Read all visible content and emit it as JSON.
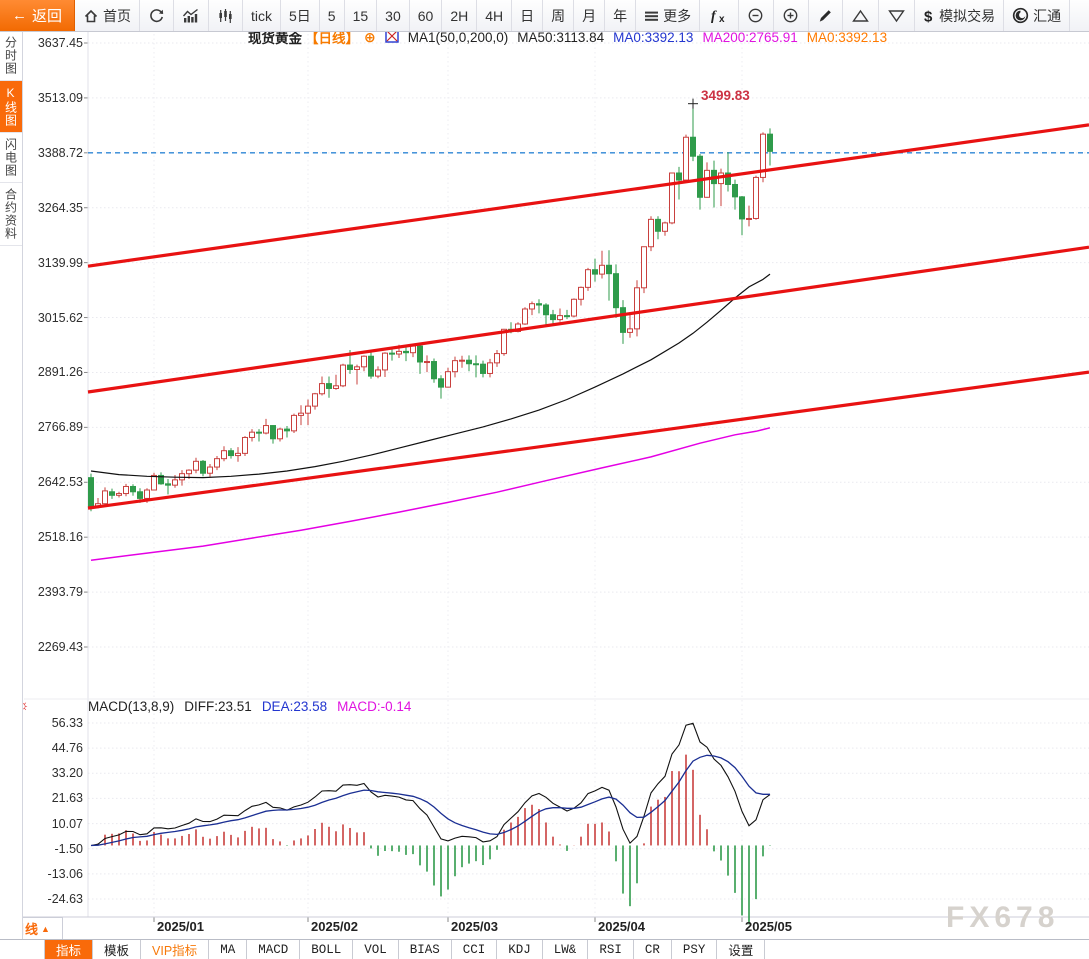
{
  "toolbar": {
    "back": {
      "label": "返回"
    },
    "buttons": [
      {
        "name": "home-button",
        "label": "首页",
        "icon": "home"
      },
      {
        "name": "refresh-button",
        "label": "",
        "icon": "refresh"
      },
      {
        "name": "line-chart-button",
        "label": "",
        "icon": "line-chart"
      },
      {
        "name": "candle-chart-button",
        "label": "",
        "icon": "candle-chart"
      },
      {
        "name": "tf-tick-button",
        "label": "tick",
        "icon": ""
      },
      {
        "name": "tf-5day-button",
        "label": "5日",
        "icon": ""
      },
      {
        "name": "tf-5min-button",
        "label": "5",
        "icon": ""
      },
      {
        "name": "tf-15min-button",
        "label": "15",
        "icon": ""
      },
      {
        "name": "tf-30min-button",
        "label": "30",
        "icon": ""
      },
      {
        "name": "tf-60min-button",
        "label": "60",
        "icon": ""
      },
      {
        "name": "tf-2h-button",
        "label": "2H",
        "icon": ""
      },
      {
        "name": "tf-4h-button",
        "label": "4H",
        "icon": ""
      },
      {
        "name": "tf-day-button",
        "label": "日",
        "icon": ""
      },
      {
        "name": "tf-week-button",
        "label": "周",
        "icon": ""
      },
      {
        "name": "tf-month-button",
        "label": "月",
        "icon": ""
      },
      {
        "name": "tf-year-button",
        "label": "年",
        "icon": ""
      },
      {
        "name": "more-button",
        "label": "更多",
        "icon": "menu"
      },
      {
        "name": "indicator-formula-button",
        "label": "",
        "icon": "fx"
      },
      {
        "name": "zoom-out-button",
        "label": "",
        "icon": "zoom-out"
      },
      {
        "name": "zoom-in-button",
        "label": "",
        "icon": "zoom-in"
      },
      {
        "name": "draw-button",
        "label": "",
        "icon": "pencil"
      },
      {
        "name": "triangle-up-button",
        "label": "",
        "icon": "triangle-up"
      },
      {
        "name": "triangle-down-button",
        "label": "",
        "icon": "triangle-down"
      },
      {
        "name": "sim-trade-button",
        "label": "模拟交易",
        "icon": "dollar"
      },
      {
        "name": "huitong-button",
        "label": "汇通",
        "icon": "spiral"
      }
    ]
  },
  "sidebar": {
    "items": [
      {
        "name": "sidebar-item-time-chart",
        "label": "分时图",
        "active": false
      },
      {
        "name": "sidebar-item-kline-chart",
        "label": "K线图",
        "active": true
      },
      {
        "name": "sidebar-item-lightning-chart",
        "label": "闪电图",
        "active": false
      },
      {
        "name": "sidebar-item-contract-info",
        "label": "合约资料",
        "active": false
      }
    ]
  },
  "chart_header": {
    "symbol": "现货黄金",
    "period_tag": "【日线】",
    "plus_icon": "⊕",
    "ma_settings": "MA1(50,0,200,0)",
    "ma50": "MA50:3113.84",
    "ma0_blue": "MA0:3392.13",
    "ma200": "MA200:2765.91",
    "ma0_orange": "MA0:3392.13"
  },
  "macd_header": {
    "formula": "MACD(13,8,9)",
    "diff": "DIFF:23.51",
    "dea": "DEA:23.58",
    "macd": "MACD:-0.14"
  },
  "peak_annotation": "3499.83",
  "bottom": {
    "period_label": "日线",
    "period_arrow": "▲",
    "tabs": [
      {
        "name": "tab-indicators",
        "label": "指标",
        "active": true,
        "latin": false,
        "vip": false
      },
      {
        "name": "tab-templates",
        "label": "模板",
        "active": false,
        "latin": false,
        "vip": false
      },
      {
        "name": "tab-vip-indicators",
        "label": "VIP指标",
        "active": false,
        "latin": false,
        "vip": true
      },
      {
        "name": "tab-ma",
        "label": "MA",
        "active": false,
        "latin": true,
        "vip": false
      },
      {
        "name": "tab-macd",
        "label": "MACD",
        "active": false,
        "latin": true,
        "vip": false
      },
      {
        "name": "tab-boll",
        "label": "BOLL",
        "active": false,
        "latin": true,
        "vip": false
      },
      {
        "name": "tab-vol",
        "label": "VOL",
        "active": false,
        "latin": true,
        "vip": false
      },
      {
        "name": "tab-bias",
        "label": "BIAS",
        "active": false,
        "latin": true,
        "vip": false
      },
      {
        "name": "tab-cci",
        "label": "CCI",
        "active": false,
        "latin": true,
        "vip": false
      },
      {
        "name": "tab-kdj",
        "label": "KDJ",
        "active": false,
        "latin": true,
        "vip": false
      },
      {
        "name": "tab-lw",
        "label": "LW&",
        "active": false,
        "latin": true,
        "vip": false
      },
      {
        "name": "tab-rsi",
        "label": "RSI",
        "active": false,
        "latin": true,
        "vip": false
      },
      {
        "name": "tab-cr",
        "label": "CR",
        "active": false,
        "latin": true,
        "vip": false
      },
      {
        "name": "tab-psy",
        "label": "PSY",
        "active": false,
        "latin": true,
        "vip": false
      },
      {
        "name": "tab-settings",
        "label": "设置",
        "active": false,
        "latin": false,
        "vip": false
      }
    ]
  },
  "watermark": "FX678",
  "chart_data": {
    "type": "candlestick",
    "symbol": "现货黄金",
    "period": "日线",
    "y_axis": [
      "3637.45",
      "3513.09",
      "3388.72",
      "3264.35",
      "3139.99",
      "3015.62",
      "2891.26",
      "2766.89",
      "2642.53",
      "2518.16",
      "2393.79",
      "2269.43"
    ],
    "macd_y_axis": [
      "56.33",
      "44.76",
      "33.20",
      "21.63",
      "10.07",
      "-1.50",
      "-13.06",
      "-24.63"
    ],
    "x_axis": [
      {
        "label": "2025/01",
        "candle_index": 9
      },
      {
        "label": "2025/02",
        "candle_index": 31
      },
      {
        "label": "2025/03",
        "candle_index": 51
      },
      {
        "label": "2025/04",
        "candle_index": 72
      },
      {
        "label": "2025/05",
        "candle_index": 93
      }
    ],
    "current_price_line": 3388.72,
    "peak_high": 3499.83,
    "candles_ohlc": [
      [
        2653,
        2662,
        2577,
        2587
      ],
      [
        2587,
        2607,
        2583,
        2594
      ],
      [
        2594,
        2631,
        2588,
        2623
      ],
      [
        2621,
        2628,
        2605,
        2613
      ],
      [
        2613,
        2621,
        2608,
        2617
      ],
      [
        2617,
        2639,
        2611,
        2633
      ],
      [
        2633,
        2638,
        2612,
        2621
      ],
      [
        2621,
        2629,
        2596,
        2606
      ],
      [
        2606,
        2629,
        2596,
        2625
      ],
      [
        2625,
        2664,
        2624,
        2658
      ],
      [
        2658,
        2665,
        2637,
        2639
      ],
      [
        2639,
        2650,
        2615,
        2636
      ],
      [
        2636,
        2659,
        2630,
        2648
      ],
      [
        2648,
        2670,
        2635,
        2662
      ],
      [
        2662,
        2672,
        2650,
        2670
      ],
      [
        2670,
        2698,
        2663,
        2690
      ],
      [
        2690,
        2693,
        2656,
        2663
      ],
      [
        2663,
        2684,
        2655,
        2677
      ],
      [
        2677,
        2702,
        2670,
        2696
      ],
      [
        2696,
        2724,
        2690,
        2714
      ],
      [
        2714,
        2720,
        2696,
        2703
      ],
      [
        2703,
        2722,
        2689,
        2708
      ],
      [
        2708,
        2747,
        2702,
        2744
      ],
      [
        2744,
        2763,
        2735,
        2756
      ],
      [
        2756,
        2763,
        2735,
        2754
      ],
      [
        2754,
        2786,
        2751,
        2771
      ],
      [
        2771,
        2772,
        2730,
        2741
      ],
      [
        2741,
        2766,
        2735,
        2763
      ],
      [
        2763,
        2770,
        2744,
        2759
      ],
      [
        2759,
        2798,
        2754,
        2794
      ],
      [
        2794,
        2817,
        2772,
        2799
      ],
      [
        2799,
        2830,
        2772,
        2815
      ],
      [
        2815,
        2845,
        2807,
        2843
      ],
      [
        2843,
        2882,
        2839,
        2866
      ],
      [
        2866,
        2882,
        2834,
        2855
      ],
      [
        2855,
        2886,
        2852,
        2861
      ],
      [
        2861,
        2911,
        2858,
        2908
      ],
      [
        2908,
        2942,
        2888,
        2898
      ],
      [
        2898,
        2909,
        2864,
        2904
      ],
      [
        2904,
        2930,
        2894,
        2928
      ],
      [
        2928,
        2940,
        2877,
        2883
      ],
      [
        2883,
        2905,
        2878,
        2897
      ],
      [
        2897,
        2937,
        2881,
        2935
      ],
      [
        2935,
        2947,
        2918,
        2933
      ],
      [
        2933,
        2954,
        2924,
        2939
      ],
      [
        2939,
        2950,
        2917,
        2936
      ],
      [
        2936,
        2956,
        2926,
        2951
      ],
      [
        2951,
        2956,
        2888,
        2915
      ],
      [
        2915,
        2930,
        2892,
        2916
      ],
      [
        2916,
        2923,
        2868,
        2877
      ],
      [
        2877,
        2885,
        2832,
        2858
      ],
      [
        2858,
        2902,
        2857,
        2893
      ],
      [
        2893,
        2927,
        2880,
        2918
      ],
      [
        2918,
        2929,
        2902,
        2919
      ],
      [
        2919,
        2930,
        2894,
        2911
      ],
      [
        2911,
        2930,
        2880,
        2910
      ],
      [
        2910,
        2918,
        2880,
        2889
      ],
      [
        2889,
        2922,
        2880,
        2913
      ],
      [
        2913,
        2942,
        2904,
        2934
      ],
      [
        2934,
        2990,
        2929,
        2989
      ],
      [
        2989,
        3005,
        2980,
        2984
      ],
      [
        2984,
        3005,
        2982,
        3001
      ],
      [
        3001,
        3039,
        2999,
        3035
      ],
      [
        3035,
        3052,
        3021,
        3047
      ],
      [
        3047,
        3057,
        3025,
        3044
      ],
      [
        3044,
        3048,
        2999,
        3022
      ],
      [
        3022,
        3033,
        3002,
        3011
      ],
      [
        3011,
        3036,
        3006,
        3020
      ],
      [
        3020,
        3033,
        3012,
        3019
      ],
      [
        3019,
        3059,
        3016,
        3057
      ],
      [
        3057,
        3086,
        3043,
        3084
      ],
      [
        3084,
        3128,
        3076,
        3124
      ],
      [
        3124,
        3149,
        3097,
        3114
      ],
      [
        3114,
        3167,
        3104,
        3134
      ],
      [
        3134,
        3168,
        3054,
        3115
      ],
      [
        3115,
        3136,
        3015,
        3038
      ],
      [
        3038,
        3055,
        2956,
        2982
      ],
      [
        2982,
        3022,
        2970,
        2990
      ],
      [
        2990,
        3100,
        2973,
        3083
      ],
      [
        3083,
        3176,
        3071,
        3176
      ],
      [
        3176,
        3245,
        3166,
        3238
      ],
      [
        3238,
        3245,
        3193,
        3211
      ],
      [
        3211,
        3233,
        3201,
        3230
      ],
      [
        3230,
        3343,
        3227,
        3343
      ],
      [
        3343,
        3357,
        3283,
        3327
      ],
      [
        3327,
        3430,
        3327,
        3424
      ],
      [
        3424,
        3500,
        3370,
        3381
      ],
      [
        3381,
        3386,
        3260,
        3288
      ],
      [
        3288,
        3367,
        3287,
        3349
      ],
      [
        3349,
        3371,
        3265,
        3319
      ],
      [
        3319,
        3353,
        3268,
        3343
      ],
      [
        3343,
        3390,
        3301,
        3317
      ],
      [
        3317,
        3328,
        3260,
        3289
      ],
      [
        3289,
        3291,
        3202,
        3239
      ],
      [
        3239,
        3269,
        3222,
        3240
      ],
      [
        3240,
        3337,
        3237,
        3333
      ],
      [
        3333,
        3435,
        3322,
        3431
      ],
      [
        3431,
        3444,
        3360,
        3392
      ]
    ],
    "ma50_points": [
      [
        0,
        2668
      ],
      [
        4,
        2660
      ],
      [
        8,
        2656
      ],
      [
        12,
        2654
      ],
      [
        16,
        2653
      ],
      [
        20,
        2656
      ],
      [
        24,
        2661
      ],
      [
        28,
        2668
      ],
      [
        32,
        2678
      ],
      [
        36,
        2690
      ],
      [
        40,
        2704
      ],
      [
        44,
        2720
      ],
      [
        48,
        2736
      ],
      [
        52,
        2752
      ],
      [
        56,
        2768
      ],
      [
        60,
        2786
      ],
      [
        64,
        2806
      ],
      [
        68,
        2830
      ],
      [
        72,
        2858
      ],
      [
        76,
        2888
      ],
      [
        80,
        2920
      ],
      [
        84,
        2958
      ],
      [
        86,
        2980
      ],
      [
        88,
        3005
      ],
      [
        90,
        3032
      ],
      [
        92,
        3060
      ],
      [
        94,
        3085
      ],
      [
        96,
        3102
      ],
      [
        97,
        3114
      ]
    ],
    "ma200_points": [
      [
        0,
        2466
      ],
      [
        8,
        2482
      ],
      [
        16,
        2498
      ],
      [
        23,
        2516
      ],
      [
        30,
        2534
      ],
      [
        37,
        2554
      ],
      [
        44,
        2575
      ],
      [
        51,
        2597
      ],
      [
        58,
        2620
      ],
      [
        65,
        2646
      ],
      [
        73,
        2675
      ],
      [
        80,
        2700
      ],
      [
        87,
        2731
      ],
      [
        92,
        2750
      ],
      [
        95,
        2758
      ],
      [
        97,
        2766
      ]
    ],
    "trendlines": [
      {
        "price_left": 3132,
        "price_right": 3452
      },
      {
        "price_left": 2847,
        "price_right": 3175
      },
      {
        "price_left": 2584,
        "price_right": 2892
      }
    ],
    "macd_params": {
      "fast": 8,
      "slow": 13,
      "signal": 9
    },
    "colors": {
      "up": "#c9403e",
      "down": "#2f9b4b",
      "trendline": "#e81212",
      "ma50": "#111111",
      "ma200": "#e400e4",
      "dea": "#1b2f93",
      "diff": "#111111",
      "price_line": "#2e86d5",
      "accent": "#f96a0a"
    }
  }
}
